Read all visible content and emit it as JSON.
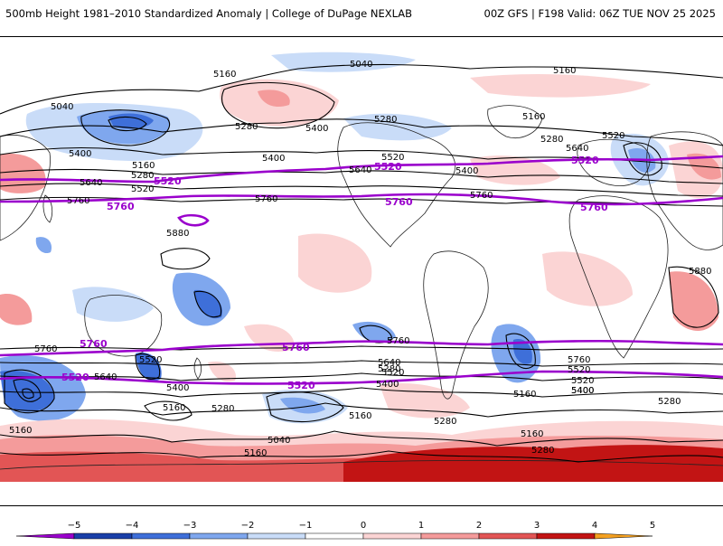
{
  "header": {
    "title": "500mb Height 1981–2010 Standardized Anomaly | College of DuPage NEXLAB",
    "run_info": "00Z GFS | F198 Valid: 06Z TUE NOV 25 2025"
  },
  "colors": {
    "contour": "#000000",
    "highlight_contour": "#9a00cc",
    "coast": "#222222"
  },
  "contour_labels": {
    "black": [
      "5040",
      "5040",
      "5160",
      "5160",
      "5280",
      "5400",
      "5400",
      "5280",
      "5160",
      "5280",
      "5400",
      "5520",
      "5640",
      "5640",
      "5520",
      "5400",
      "5640",
      "5520",
      "5280",
      "5160",
      "5760",
      "5880",
      "5760",
      "5760",
      "5760",
      "5640",
      "5520",
      "5400",
      "5160",
      "5280",
      "5160",
      "5040",
      "5160",
      "5280",
      "5400",
      "5520",
      "5640",
      "5760",
      "5520",
      "5400",
      "5280",
      "5160",
      "5280",
      "5520",
      "5880",
      "5760",
      "5400",
      "5160",
      "5280",
      "5160"
    ],
    "purple": [
      "5520",
      "5760",
      "5520",
      "5760",
      "5760",
      "5520",
      "5760",
      "5760",
      "5520",
      "5520"
    ]
  },
  "colorbar": {
    "ticks": [
      "−5",
      "−4",
      "−3",
      "−2",
      "−1",
      "0",
      "1",
      "2",
      "3",
      "4",
      "5"
    ],
    "colors": [
      "#9a00cc",
      "#1a3fa8",
      "#3e6fd9",
      "#7fa7ee",
      "#c9dcf8",
      "#ffffff",
      "#fbd4d4",
      "#f49b9b",
      "#e25555",
      "#c21414",
      "#f4a020"
    ]
  }
}
